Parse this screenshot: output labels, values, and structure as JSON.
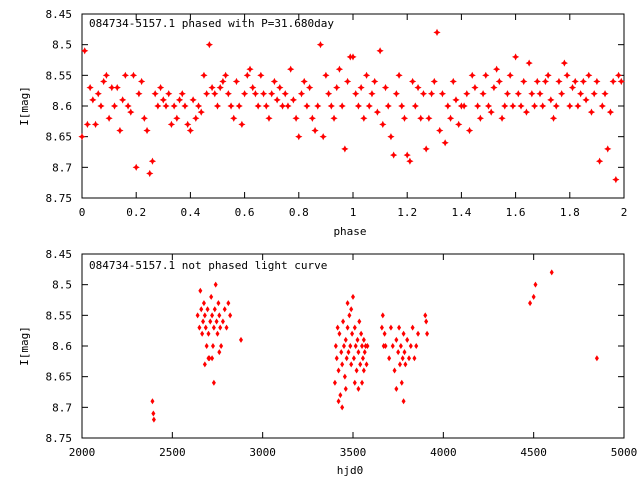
{
  "colors": {
    "marker": "#ff0000",
    "axis": "#000000",
    "background": "#ffffff"
  },
  "chart_data": [
    {
      "type": "scatter",
      "title": "084734-5157.1 phased with P=31.680day",
      "xlabel": "phase",
      "ylabel": "I[mag]",
      "xlim": [
        0,
        2
      ],
      "ylim": [
        8.75,
        8.45
      ],
      "y_inverted": true,
      "grid": false,
      "marker": "filled-star",
      "xticks": [
        "0",
        "0.2",
        "0.4",
        "0.6",
        "0.8",
        "1",
        "1.2",
        "1.4",
        "1.6",
        "1.8",
        "2"
      ],
      "yticks": [
        "8.45",
        "8.5",
        "8.55",
        "8.6",
        "8.65",
        "8.7",
        "8.75"
      ],
      "points": [
        [
          0.0,
          8.65
        ],
        [
          0.01,
          8.51
        ],
        [
          0.02,
          8.63
        ],
        [
          0.03,
          8.57
        ],
        [
          0.04,
          8.59
        ],
        [
          0.05,
          8.63
        ],
        [
          0.06,
          8.58
        ],
        [
          0.07,
          8.6
        ],
        [
          0.08,
          8.56
        ],
        [
          0.09,
          8.55
        ],
        [
          0.1,
          8.62
        ],
        [
          0.11,
          8.57
        ],
        [
          0.12,
          8.6
        ],
        [
          0.13,
          8.57
        ],
        [
          0.14,
          8.64
        ],
        [
          0.15,
          8.59
        ],
        [
          0.16,
          8.55
        ],
        [
          0.17,
          8.6
        ],
        [
          0.18,
          8.61
        ],
        [
          0.19,
          8.55
        ],
        [
          0.2,
          8.7
        ],
        [
          0.21,
          8.58
        ],
        [
          0.22,
          8.56
        ],
        [
          0.23,
          8.62
        ],
        [
          0.24,
          8.64
        ],
        [
          0.25,
          8.71
        ],
        [
          0.26,
          8.69
        ],
        [
          0.27,
          8.58
        ],
        [
          0.28,
          8.6
        ],
        [
          0.29,
          8.57
        ],
        [
          0.3,
          8.59
        ],
        [
          0.31,
          8.6
        ],
        [
          0.32,
          8.58
        ],
        [
          0.33,
          8.63
        ],
        [
          0.34,
          8.6
        ],
        [
          0.35,
          8.62
        ],
        [
          0.36,
          8.59
        ],
        [
          0.37,
          8.58
        ],
        [
          0.38,
          8.6
        ],
        [
          0.39,
          8.63
        ],
        [
          0.4,
          8.64
        ],
        [
          0.41,
          8.59
        ],
        [
          0.42,
          8.62
        ],
        [
          0.43,
          8.6
        ],
        [
          0.44,
          8.61
        ],
        [
          0.45,
          8.55
        ],
        [
          0.46,
          8.58
        ],
        [
          0.47,
          8.5
        ],
        [
          0.48,
          8.57
        ],
        [
          0.49,
          8.58
        ],
        [
          0.5,
          8.6
        ],
        [
          0.51,
          8.57
        ],
        [
          0.52,
          8.56
        ],
        [
          0.53,
          8.55
        ],
        [
          0.54,
          8.58
        ],
        [
          0.55,
          8.6
        ],
        [
          0.56,
          8.62
        ],
        [
          0.57,
          8.56
        ],
        [
          0.58,
          8.6
        ],
        [
          0.59,
          8.63
        ],
        [
          0.6,
          8.58
        ],
        [
          0.61,
          8.55
        ],
        [
          0.62,
          8.54
        ],
        [
          0.63,
          8.57
        ],
        [
          0.64,
          8.58
        ],
        [
          0.65,
          8.6
        ],
        [
          0.66,
          8.55
        ],
        [
          0.67,
          8.58
        ],
        [
          0.68,
          8.6
        ],
        [
          0.69,
          8.62
        ],
        [
          0.7,
          8.58
        ],
        [
          0.71,
          8.56
        ],
        [
          0.72,
          8.59
        ],
        [
          0.73,
          8.57
        ],
        [
          0.74,
          8.6
        ],
        [
          0.75,
          8.58
        ],
        [
          0.76,
          8.6
        ],
        [
          0.77,
          8.54
        ],
        [
          0.78,
          8.59
        ],
        [
          0.79,
          8.62
        ],
        [
          0.8,
          8.65
        ],
        [
          0.81,
          8.58
        ],
        [
          0.82,
          8.56
        ],
        [
          0.83,
          8.6
        ],
        [
          0.84,
          8.57
        ],
        [
          0.85,
          8.62
        ],
        [
          0.86,
          8.64
        ],
        [
          0.87,
          8.6
        ],
        [
          0.88,
          8.5
        ],
        [
          0.89,
          8.65
        ],
        [
          0.9,
          8.55
        ],
        [
          0.91,
          8.58
        ],
        [
          0.92,
          8.6
        ],
        [
          0.93,
          8.62
        ],
        [
          0.94,
          8.57
        ],
        [
          0.95,
          8.54
        ],
        [
          0.96,
          8.6
        ],
        [
          0.97,
          8.67
        ],
        [
          0.98,
          8.56
        ],
        [
          0.99,
          8.52
        ],
        [
          1.0,
          8.52
        ],
        [
          1.01,
          8.58
        ],
        [
          1.02,
          8.6
        ],
        [
          1.03,
          8.57
        ],
        [
          1.04,
          8.62
        ],
        [
          1.05,
          8.55
        ],
        [
          1.06,
          8.6
        ],
        [
          1.07,
          8.58
        ],
        [
          1.08,
          8.56
        ],
        [
          1.09,
          8.61
        ],
        [
          1.1,
          8.51
        ],
        [
          1.11,
          8.63
        ],
        [
          1.12,
          8.57
        ],
        [
          1.13,
          8.6
        ],
        [
          1.14,
          8.65
        ],
        [
          1.15,
          8.68
        ],
        [
          1.16,
          8.58
        ],
        [
          1.17,
          8.55
        ],
        [
          1.18,
          8.6
        ],
        [
          1.19,
          8.62
        ],
        [
          1.2,
          8.68
        ],
        [
          1.21,
          8.69
        ],
        [
          1.22,
          8.56
        ],
        [
          1.23,
          8.6
        ],
        [
          1.24,
          8.57
        ],
        [
          1.25,
          8.62
        ],
        [
          1.26,
          8.58
        ],
        [
          1.27,
          8.67
        ],
        [
          1.28,
          8.62
        ],
        [
          1.29,
          8.58
        ],
        [
          1.3,
          8.56
        ],
        [
          1.31,
          8.48
        ],
        [
          1.32,
          8.64
        ],
        [
          1.33,
          8.58
        ],
        [
          1.34,
          8.66
        ],
        [
          1.35,
          8.6
        ],
        [
          1.36,
          8.62
        ],
        [
          1.37,
          8.56
        ],
        [
          1.38,
          8.59
        ],
        [
          1.39,
          8.63
        ],
        [
          1.4,
          8.6
        ],
        [
          1.41,
          8.6
        ],
        [
          1.42,
          8.58
        ],
        [
          1.43,
          8.64
        ],
        [
          1.44,
          8.55
        ],
        [
          1.45,
          8.57
        ],
        [
          1.46,
          8.6
        ],
        [
          1.47,
          8.62
        ],
        [
          1.48,
          8.58
        ],
        [
          1.49,
          8.55
        ],
        [
          1.5,
          8.6
        ],
        [
          1.51,
          8.61
        ],
        [
          1.52,
          8.57
        ],
        [
          1.53,
          8.54
        ],
        [
          1.54,
          8.56
        ],
        [
          1.55,
          8.62
        ],
        [
          1.56,
          8.6
        ],
        [
          1.57,
          8.58
        ],
        [
          1.58,
          8.55
        ],
        [
          1.59,
          8.6
        ],
        [
          1.6,
          8.52
        ],
        [
          1.61,
          8.58
        ],
        [
          1.62,
          8.6
        ],
        [
          1.63,
          8.56
        ],
        [
          1.64,
          8.61
        ],
        [
          1.65,
          8.53
        ],
        [
          1.66,
          8.58
        ],
        [
          1.67,
          8.6
        ],
        [
          1.68,
          8.56
        ],
        [
          1.69,
          8.58
        ],
        [
          1.7,
          8.6
        ],
        [
          1.71,
          8.56
        ],
        [
          1.72,
          8.55
        ],
        [
          1.73,
          8.59
        ],
        [
          1.74,
          8.62
        ],
        [
          1.75,
          8.6
        ],
        [
          1.76,
          8.56
        ],
        [
          1.77,
          8.58
        ],
        [
          1.78,
          8.53
        ],
        [
          1.79,
          8.55
        ],
        [
          1.8,
          8.6
        ],
        [
          1.81,
          8.57
        ],
        [
          1.82,
          8.56
        ],
        [
          1.83,
          8.6
        ],
        [
          1.84,
          8.58
        ],
        [
          1.85,
          8.56
        ],
        [
          1.86,
          8.59
        ],
        [
          1.87,
          8.55
        ],
        [
          1.88,
          8.61
        ],
        [
          1.89,
          8.58
        ],
        [
          1.9,
          8.56
        ],
        [
          1.91,
          8.69
        ],
        [
          1.92,
          8.6
        ],
        [
          1.93,
          8.58
        ],
        [
          1.94,
          8.67
        ],
        [
          1.95,
          8.61
        ],
        [
          1.96,
          8.56
        ],
        [
          1.97,
          8.72
        ],
        [
          1.98,
          8.55
        ],
        [
          1.99,
          8.56
        ]
      ]
    },
    {
      "type": "scatter",
      "title": "084734-5157.1 not phased light curve",
      "xlabel": "hjd0",
      "ylabel": "I[mag]",
      "xlim": [
        2000,
        5000
      ],
      "ylim": [
        8.75,
        8.45
      ],
      "y_inverted": true,
      "grid": false,
      "marker": "filled-diamond",
      "xticks": [
        "2000",
        "2500",
        "3000",
        "3500",
        "4000",
        "4500",
        "5000"
      ],
      "yticks": [
        "8.45",
        "8.5",
        "8.55",
        "8.6",
        "8.65",
        "8.7",
        "8.75"
      ],
      "points": [
        [
          2390,
          8.69
        ],
        [
          2395,
          8.71
        ],
        [
          2398,
          8.72
        ],
        [
          2640,
          8.55
        ],
        [
          2650,
          8.57
        ],
        [
          2655,
          8.51
        ],
        [
          2660,
          8.54
        ],
        [
          2665,
          8.58
        ],
        [
          2670,
          8.56
        ],
        [
          2675,
          8.53
        ],
        [
          2680,
          8.55
        ],
        [
          2685,
          8.57
        ],
        [
          2690,
          8.6
        ],
        [
          2695,
          8.54
        ],
        [
          2700,
          8.58
        ],
        [
          2705,
          8.62
        ],
        [
          2710,
          8.56
        ],
        [
          2715,
          8.52
        ],
        [
          2720,
          8.55
        ],
        [
          2725,
          8.6
        ],
        [
          2730,
          8.57
        ],
        [
          2735,
          8.54
        ],
        [
          2740,
          8.5
        ],
        [
          2745,
          8.56
        ],
        [
          2750,
          8.58
        ],
        [
          2755,
          8.53
        ],
        [
          2760,
          8.55
        ],
        [
          2765,
          8.57
        ],
        [
          2770,
          8.6
        ],
        [
          2780,
          8.56
        ],
        [
          2790,
          8.54
        ],
        [
          2800,
          8.57
        ],
        [
          2810,
          8.53
        ],
        [
          2820,
          8.55
        ],
        [
          2680,
          8.63
        ],
        [
          2700,
          8.62
        ],
        [
          2720,
          8.62
        ],
        [
          2730,
          8.66
        ],
        [
          2760,
          8.61
        ],
        [
          2880,
          8.59
        ],
        [
          3400,
          8.66
        ],
        [
          3405,
          8.6
        ],
        [
          3410,
          8.62
        ],
        [
          3415,
          8.57
        ],
        [
          3420,
          8.64
        ],
        [
          3425,
          8.58
        ],
        [
          3430,
          8.68
        ],
        [
          3435,
          8.61
        ],
        [
          3440,
          8.63
        ],
        [
          3445,
          8.56
        ],
        [
          3450,
          8.6
        ],
        [
          3455,
          8.65
        ],
        [
          3460,
          8.59
        ],
        [
          3465,
          8.62
        ],
        [
          3470,
          8.57
        ],
        [
          3475,
          8.61
        ],
        [
          3480,
          8.55
        ],
        [
          3485,
          8.6
        ],
        [
          3490,
          8.63
        ],
        [
          3495,
          8.58
        ],
        [
          3500,
          8.52
        ],
        [
          3505,
          8.62
        ],
        [
          3510,
          8.57
        ],
        [
          3515,
          8.6
        ],
        [
          3520,
          8.64
        ],
        [
          3525,
          8.59
        ],
        [
          3530,
          8.61
        ],
        [
          3535,
          8.56
        ],
        [
          3540,
          8.63
        ],
        [
          3545,
          8.58
        ],
        [
          3550,
          8.6
        ],
        [
          3555,
          8.62
        ],
        [
          3560,
          8.59
        ],
        [
          3565,
          8.61
        ],
        [
          3570,
          8.6
        ],
        [
          3575,
          8.63
        ],
        [
          3580,
          8.6
        ],
        [
          3420,
          8.69
        ],
        [
          3440,
          8.7
        ],
        [
          3460,
          8.67
        ],
        [
          3470,
          8.53
        ],
        [
          3490,
          8.54
        ],
        [
          3510,
          8.66
        ],
        [
          3530,
          8.67
        ],
        [
          3550,
          8.66
        ],
        [
          3560,
          8.64
        ],
        [
          3660,
          8.57
        ],
        [
          3665,
          8.55
        ],
        [
          3670,
          8.6
        ],
        [
          3675,
          8.58
        ],
        [
          3680,
          8.6
        ],
        [
          3700,
          8.62
        ],
        [
          3710,
          8.57
        ],
        [
          3720,
          8.6
        ],
        [
          3730,
          8.64
        ],
        [
          3740,
          8.59
        ],
        [
          3750,
          8.61
        ],
        [
          3755,
          8.57
        ],
        [
          3760,
          8.63
        ],
        [
          3765,
          8.6
        ],
        [
          3770,
          8.66
        ],
        [
          3775,
          8.62
        ],
        [
          3780,
          8.58
        ],
        [
          3785,
          8.61
        ],
        [
          3790,
          8.63
        ],
        [
          3800,
          8.59
        ],
        [
          3810,
          8.62
        ],
        [
          3820,
          8.6
        ],
        [
          3830,
          8.57
        ],
        [
          3840,
          8.62
        ],
        [
          3850,
          8.6
        ],
        [
          3860,
          8.58
        ],
        [
          3900,
          8.55
        ],
        [
          3905,
          8.56
        ],
        [
          3910,
          8.58
        ],
        [
          3780,
          8.69
        ],
        [
          3740,
          8.67
        ],
        [
          4480,
          8.53
        ],
        [
          4500,
          8.52
        ],
        [
          4510,
          8.5
        ],
        [
          4600,
          8.48
        ],
        [
          4850,
          8.62
        ]
      ]
    }
  ]
}
